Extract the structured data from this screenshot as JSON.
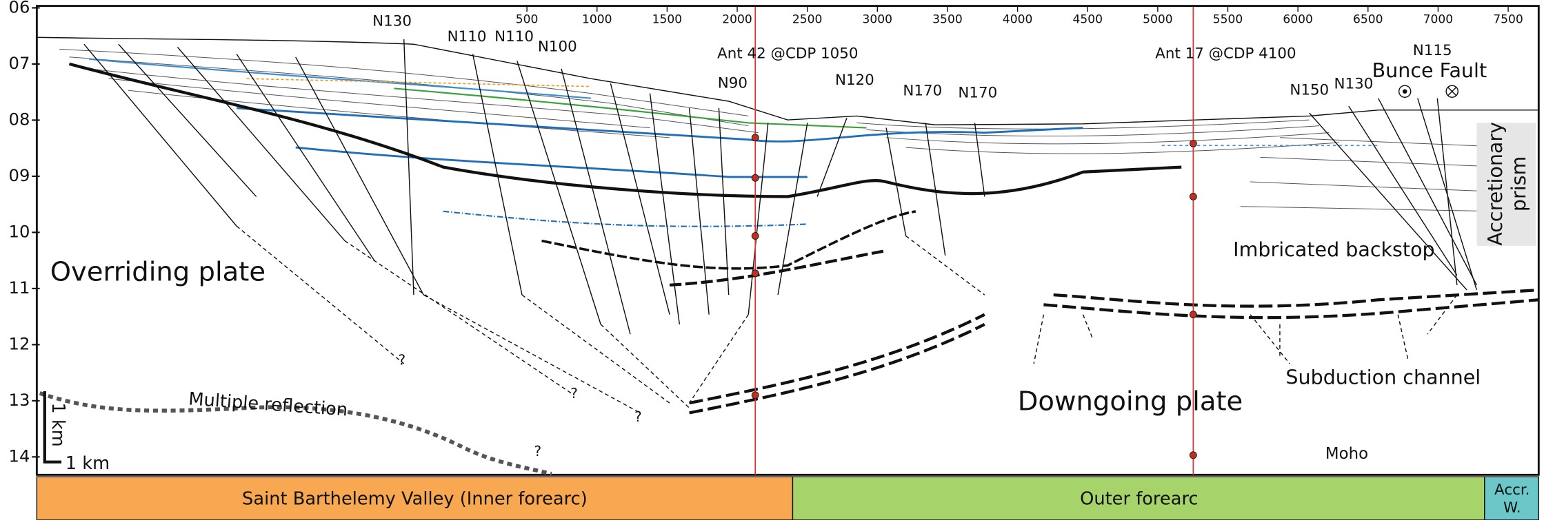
{
  "x_axis": {
    "ticks": [
      500,
      1000,
      1500,
      2000,
      2500,
      3000,
      3500,
      4000,
      4500,
      5000,
      5500,
      6000,
      6500,
      7000,
      7500
    ]
  },
  "y_axis": {
    "ticks": [
      "06",
      "07",
      "08",
      "09",
      "10",
      "11",
      "12",
      "13",
      "14"
    ]
  },
  "annotations": [
    "N130",
    "N110",
    "N110",
    "N100",
    "N90",
    "Ant 42 @CDP 1050",
    "N120",
    "N170",
    "N170",
    "Ant 17 @CDP 4100",
    "N150",
    "N130",
    "N115",
    "Bunce Fault",
    "Imbricated backstop",
    "Overriding plate",
    "Multiple reflection",
    "Downgoing plate",
    "Subduction channel",
    "Moho",
    "?",
    "?",
    "?",
    "?"
  ],
  "accretionary_prism": [
    "Accretionary",
    "prism"
  ],
  "scale_bar": {
    "horizontal": "1 km",
    "vertical": "1 km"
  },
  "regions": [
    {
      "label": [
        "Saint Barthelemy Valley (Inner forearc)"
      ]
    },
    {
      "label": [
        "Outer forearc"
      ]
    },
    {
      "label": [
        "Accr.",
        "W."
      ]
    }
  ]
}
